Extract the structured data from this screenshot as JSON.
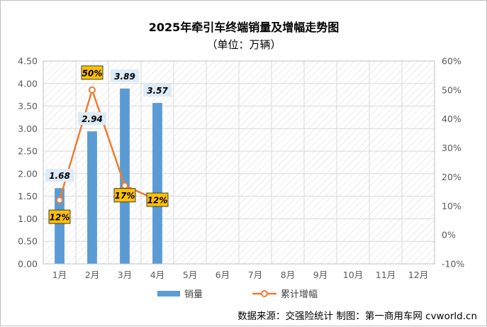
{
  "chart_data": {
    "type": "bar",
    "title": "2025年牵引车终端销量及增幅走势图",
    "subtitle": "（单位：万辆）",
    "categories": [
      "1月",
      "2月",
      "3月",
      "4月",
      "5月",
      "6月",
      "7月",
      "8月",
      "9月",
      "10月",
      "11月",
      "12月"
    ],
    "series": [
      {
        "name": "销量",
        "type": "bar",
        "axis": "left",
        "values": [
          1.68,
          2.94,
          3.89,
          3.57,
          null,
          null,
          null,
          null,
          null,
          null,
          null,
          null
        ],
        "labels": [
          "1.68",
          "2.94",
          "3.89",
          "3.57"
        ]
      },
      {
        "name": "累计增幅",
        "type": "line",
        "axis": "right",
        "values": [
          12,
          50,
          17,
          12,
          null,
          null,
          null,
          null,
          null,
          null,
          null,
          null
        ],
        "labels": [
          "12%",
          "50%",
          "17%",
          "12%"
        ]
      }
    ],
    "y_left": {
      "min": 0,
      "max": 4.5,
      "step": 0.5,
      "ticks": [
        "0.00",
        "0.50",
        "1.00",
        "1.50",
        "2.00",
        "2.50",
        "3.00",
        "3.50",
        "4.00",
        "4.50"
      ]
    },
    "y_right": {
      "min": -10,
      "max": 60,
      "step": 10,
      "ticks": [
        "-10%",
        "0%",
        "10%",
        "20%",
        "30%",
        "40%",
        "50%",
        "60%"
      ]
    },
    "grid": true,
    "legend_position": "bottom",
    "colors": {
      "bar": "#5b9bd5",
      "line": "#ed7d31",
      "pct_label_bg": "#ffc000",
      "bar_label_bg": "#ddebf7",
      "hatch": "#d9d9d9"
    }
  },
  "footer": {
    "source": "数据来源：交强险统计   制图：第一商用车网 cvworld.cn"
  }
}
